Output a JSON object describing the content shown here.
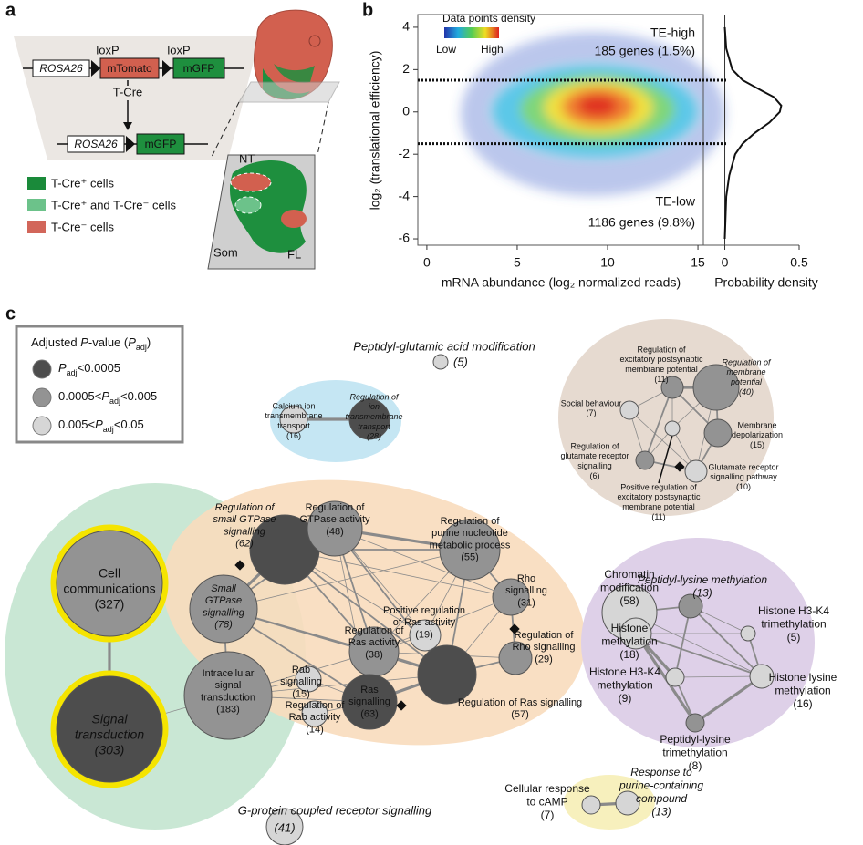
{
  "panel_a": {
    "label": "a",
    "loxp": [
      "loxP",
      "loxP"
    ],
    "rosa26": [
      "ROSA26",
      "ROSA26"
    ],
    "mtomato": "mTomato",
    "mgfp": [
      "mGFP",
      "mGFP"
    ],
    "tcre": "T-Cre",
    "legend": [
      "T-Cre⁺ cells",
      "T-Cre⁺ and T-Cre⁻ cells",
      "T-Cre⁻ cells"
    ],
    "section": {
      "nt": "NT",
      "som": "Som",
      "fl": "FL"
    }
  },
  "panel_b": {
    "label": "b",
    "colorbar_title": "Data points density",
    "colorbar_low": "Low",
    "colorbar_high": "High",
    "te_high": "TE-high",
    "te_high_count": "185 genes (1.5%)",
    "te_low": "TE-low",
    "te_low_count": "1186 genes (9.8%)",
    "xlabel": "mRNA abundance (log₂ normalized reads)",
    "ylabel": "log₂ (translational efficiency)",
    "density_xlabel": "Probability density",
    "xlim": [
      -0.5,
      15.3
    ],
    "xticks": [
      0,
      5,
      10,
      15
    ],
    "ylim": [
      -6.3,
      4.6
    ],
    "yticks": [
      -6,
      -4,
      -2,
      0,
      2,
      4
    ],
    "threshold_lines": [
      1.5,
      -1.5
    ],
    "density_xlim": [
      -0.04,
      0.5
    ],
    "density_xticks": [
      0,
      0.5
    ],
    "density_curve": {
      "y": [
        -6,
        -4,
        -3,
        -2,
        -1.5,
        -1,
        -0.5,
        0,
        0.3,
        0.7,
        1,
        1.5,
        2,
        3,
        4
      ],
      "density": [
        0,
        0.01,
        0.03,
        0.07,
        0.12,
        0.2,
        0.3,
        0.37,
        0.38,
        0.33,
        0.25,
        0.12,
        0.05,
        0.01,
        0
      ]
    }
  },
  "panel_c": {
    "label": "c",
    "legend": {
      "title": [
        "Adjusted ",
        "P",
        "-value (",
        "P",
        "adj",
        ")"
      ],
      "symbol": "P",
      "subscript": "adj",
      "items": [
        {
          "upper": "<0.0005"
        },
        {
          "lower": "0.0005<",
          "upper": "<0.005"
        },
        {
          "lower": "0.005<",
          "upper": "<0.05"
        }
      ]
    },
    "nodes": [
      {
        "label": [
          "Cell",
          "communications"
        ],
        "count": "(327)",
        "level": 1
      },
      {
        "label": [
          "Signal",
          "transduction"
        ],
        "count": "(303)",
        "level": 0,
        "italic": true
      },
      {
        "label": [
          "Small",
          "GTPase",
          "signalling"
        ],
        "count": "(78)",
        "level": 1,
        "italic": true
      },
      {
        "label": [
          "Intracellular",
          "signal",
          "transduction"
        ],
        "count": "(183)",
        "level": 1
      },
      {
        "label": [
          "Regulation of",
          "small GTPase",
          "signalling"
        ],
        "count": "(62)",
        "level": 0,
        "italic": true
      },
      {
        "label": [
          "Regulation of",
          "GTPase activity"
        ],
        "count": "(48)",
        "level": 1
      },
      {
        "label": [
          "Regulation of",
          "purine nucleotide",
          "metabolic process"
        ],
        "count": "(55)",
        "level": 1
      },
      {
        "label": [
          "Rho",
          "signalling"
        ],
        "count": "(31)",
        "level": 1
      },
      {
        "label": [
          "Positive regulation",
          "of Ras activity"
        ],
        "count": "(19)",
        "level": 2
      },
      {
        "label": [
          "Regulation of",
          "Rho signalling"
        ],
        "count": "(29)",
        "level": 1
      },
      {
        "label": [
          "Regulation of",
          "Ras activity"
        ],
        "count": "(38)",
        "level": 1
      },
      {
        "label": [
          "Regulation of Ras signalling"
        ],
        "count": "(57)",
        "level": 0
      },
      {
        "label": [
          "Ras",
          "signalling"
        ],
        "count": "(63)",
        "level": 0
      },
      {
        "label": [
          "Rab",
          "signalling"
        ],
        "count": "(15)",
        "level": 2
      },
      {
        "label": [
          "Regulation of",
          "Rab activity"
        ],
        "count": "(14)",
        "level": 2
      },
      {
        "label": [
          "G-protein coupled receptor signalling"
        ],
        "count": "(41)",
        "level": 2,
        "italic": true
      },
      {
        "label": [
          "Peptidyl-glutamic acid modification"
        ],
        "count": "(5)",
        "level": 2,
        "italic": true
      },
      {
        "label": [
          "Calcium ion",
          "transmembrane",
          "transport"
        ],
        "count": "(16)",
        "level": 2
      },
      {
        "label": [
          "Regulation of",
          "ion",
          "transmembrane",
          "transport"
        ],
        "count": "(28)",
        "level": 0,
        "italic": true
      },
      {
        "label": [
          "Regulation of",
          "excitatory postsynaptic",
          "membrane potential"
        ],
        "count": "(11)",
        "level": 1
      },
      {
        "label": [
          "Regulation of",
          "membrane",
          "potential"
        ],
        "count": "(40)",
        "level": 1,
        "italic": true
      },
      {
        "label": [
          "Social behaviour"
        ],
        "count": "(7)",
        "level": 2
      },
      {
        "label": [
          "Membrane",
          "depolarization"
        ],
        "count": "(15)",
        "level": 1
      },
      {
        "label": [
          "Positive regulation of",
          "excitatory postsynaptic",
          "membrane potential"
        ],
        "count": "(11)",
        "level": 2
      },
      {
        "label": [
          "Regulation of",
          "glutamate receptor",
          "signalling"
        ],
        "count": "(6)",
        "level": 1
      },
      {
        "label": [
          "Glutamate receptor",
          "signalling pathway"
        ],
        "count": "(10)",
        "level": 2
      },
      {
        "label": [
          "Chromatin",
          "modification"
        ],
        "count": "(58)",
        "level": 2
      },
      {
        "label": [
          "Peptidyl-lysine methylation"
        ],
        "count": "(13)",
        "level": 1,
        "italic": true
      },
      {
        "label": [
          "Histone",
          "methylation"
        ],
        "count": "(18)",
        "level": 2
      },
      {
        "label": [
          "Histone H3-K4",
          "trimethylation"
        ],
        "count": "(5)",
        "level": 2
      },
      {
        "label": [
          "Histone H3-K4",
          "methylation"
        ],
        "count": "(9)",
        "level": 2
      },
      {
        "label": [
          "Histone lysine",
          "methylation"
        ],
        "count": "(16)",
        "level": 2
      },
      {
        "label": [
          "Peptidyl-lysine",
          "trimethylation"
        ],
        "count": "(8)",
        "level": 1
      },
      {
        "label": [
          "Cellular response",
          "to cAMP"
        ],
        "count": "(7)",
        "level": 2
      },
      {
        "label": [
          "Response to",
          "purine-containing",
          "compound"
        ],
        "count": "(13)",
        "level": 2,
        "italic": true
      }
    ]
  }
}
